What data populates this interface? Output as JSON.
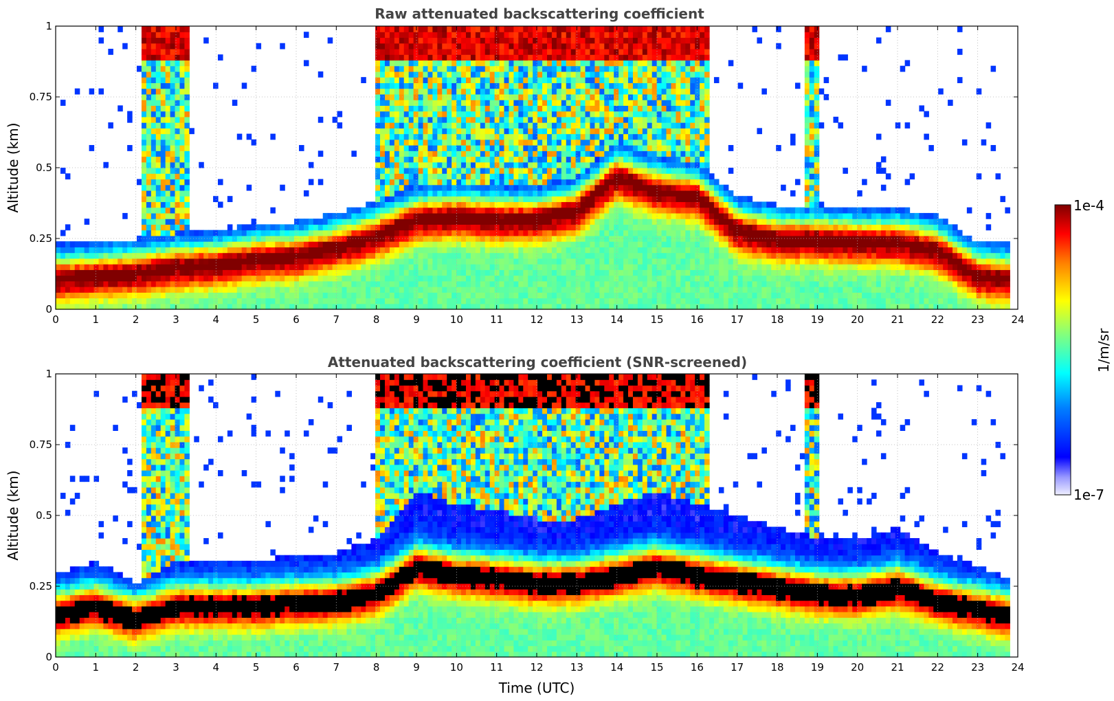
{
  "chart_data": [
    {
      "type": "heatmap",
      "title": "Raw attenuated backscattering coefficient",
      "xlabel": "",
      "ylabel": "Altitude (km)",
      "xlim": [
        0,
        24
      ],
      "ylim": [
        0,
        1
      ],
      "x_ticks": [
        "0",
        "1",
        "2",
        "3",
        "4",
        "5",
        "6",
        "7",
        "8",
        "9",
        "10",
        "11",
        "12",
        "13",
        "14",
        "15",
        "16",
        "17",
        "18",
        "19",
        "20",
        "21",
        "22",
        "23",
        "24"
      ],
      "y_ticks": [
        "0",
        "0.25",
        "0.5",
        "0.75",
        "1"
      ],
      "grid": true,
      "colorscale": "jet",
      "data_end_time": 23.8,
      "boundary_layer_center_km": {
        "time": [
          0,
          1,
          2,
          3,
          4,
          5,
          6,
          7,
          8,
          9,
          10,
          11,
          12,
          13,
          14,
          15,
          16,
          17,
          18,
          19,
          20,
          21,
          22,
          23,
          23.8
        ],
        "altitude": [
          0.09,
          0.1,
          0.11,
          0.13,
          0.14,
          0.16,
          0.17,
          0.2,
          0.24,
          0.3,
          0.31,
          0.3,
          0.3,
          0.33,
          0.45,
          0.4,
          0.38,
          0.26,
          0.23,
          0.23,
          0.22,
          0.22,
          0.19,
          0.1,
          0.09
        ]
      }
    },
    {
      "type": "heatmap",
      "title": "Attenuated backscattering coefficient (SNR-screened)",
      "xlabel": "Time (UTC)",
      "ylabel": "Altitude (km)",
      "xlim": [
        0,
        24
      ],
      "ylim": [
        0,
        1
      ],
      "x_ticks": [
        "0",
        "1",
        "2",
        "3",
        "4",
        "5",
        "6",
        "7",
        "8",
        "9",
        "10",
        "11",
        "12",
        "13",
        "14",
        "15",
        "16",
        "17",
        "18",
        "19",
        "20",
        "21",
        "22",
        "23",
        "24"
      ],
      "y_ticks": [
        "0",
        "0.25",
        "0.5",
        "0.75",
        "1"
      ],
      "grid": true,
      "colorscale": "jet",
      "saturated_color": "#000000",
      "data_end_time": 23.8,
      "boundary_layer_top_km": {
        "time": [
          0,
          1,
          2,
          3,
          4,
          5,
          6,
          7,
          8,
          9,
          10,
          11,
          12,
          13,
          14,
          15,
          16,
          17,
          18,
          19,
          20,
          21,
          22,
          23,
          23.8
        ],
        "altitude": [
          0.25,
          0.3,
          0.22,
          0.3,
          0.3,
          0.3,
          0.32,
          0.33,
          0.38,
          0.55,
          0.5,
          0.48,
          0.45,
          0.45,
          0.5,
          0.55,
          0.5,
          0.46,
          0.42,
          0.38,
          0.37,
          0.42,
          0.33,
          0.28,
          0.24
        ]
      }
    }
  ],
  "colorbar": {
    "label": "1/m/sr",
    "max_label": "1e-4",
    "min_label": "1e-7",
    "scale": "log",
    "range": [
      1e-07,
      0.0001
    ]
  }
}
